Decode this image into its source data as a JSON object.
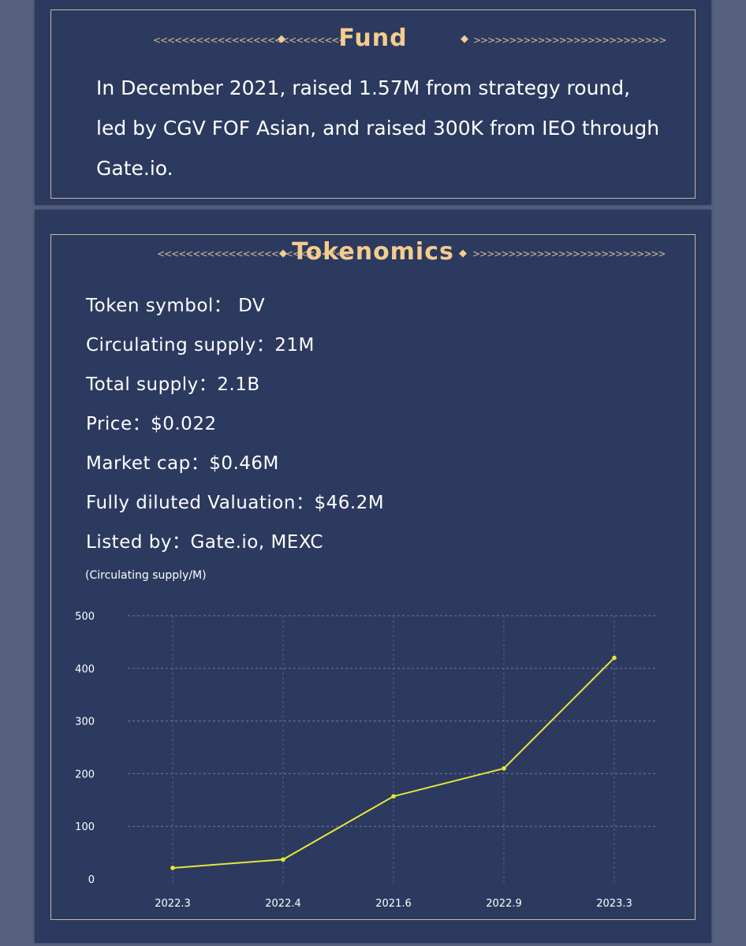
{
  "fund": {
    "title": "Fund",
    "deco_left": "<<<<<<<<<<<<<<<<<<<<<<<<<<<",
    "deco_right": ">>>>>>>>>>>>>>>>>>>>>>>>>>>",
    "text": "In December 2021, raised 1.57M from strategy round, led by CGV FOF Asian, and raised 300K from IEO through Gate.io."
  },
  "tokenomics": {
    "title": "Tokenomics",
    "deco_left": "<<<<<<<<<<<<<<<<<<<<<<<<<<<",
    "deco_right": ">>>>>>>>>>>>>>>>>>>>>>>>>>>",
    "lines": [
      "Token symbol：  DV",
      "Circulating  supply：21M",
      "Total supply：2.1B",
      "Price：$0.022",
      "Market cap：$0.46M",
      "Fully diluted Valuation：$46.2M",
      "Listed by：Gate.io, MEXC"
    ],
    "axis_note": "(Circulating  supply/M)"
  },
  "colors": {
    "background": "#56617f",
    "card": "#2c3a5f",
    "frame": "#cbb89a",
    "heading": "#f5cc8e",
    "line": "#e6e63a",
    "axis_text": "#ffffff"
  },
  "chart_data": {
    "type": "line",
    "categories": [
      "2022.3",
      "2022.4",
      "2021.6",
      "2022.9",
      "2023.3"
    ],
    "values": [
      21,
      37,
      157,
      210,
      420
    ],
    "ylim": [
      0,
      500
    ],
    "yticks": [
      0,
      100,
      200,
      300,
      400,
      500
    ],
    "xlabel": "",
    "ylabel": "(Circulating  supply/M)",
    "grid": true
  }
}
